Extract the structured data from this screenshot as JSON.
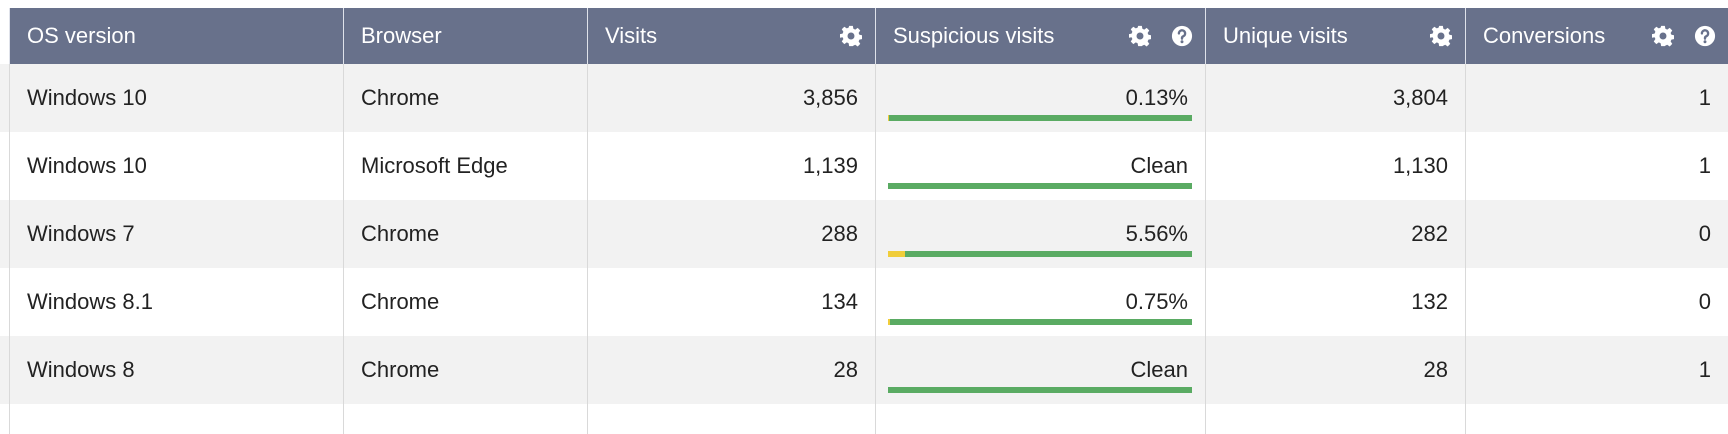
{
  "table": {
    "columns": [
      "OS version",
      "Browser",
      "Visits",
      "Suspicious visits",
      "Unique visits",
      "Conversions"
    ],
    "rows": [
      [
        "Windows 10",
        "Chrome",
        "3,856",
        {
          "label": "0.13%",
          "value": 0.13
        },
        "3,804",
        "1"
      ],
      [
        "Windows 10",
        "Microsoft Edge",
        "1,139",
        {
          "label": "Clean",
          "value": 0
        },
        "1,130",
        "1"
      ],
      [
        "Windows 7",
        "Chrome",
        "288",
        {
          "label": "5.56%",
          "value": 5.56
        },
        "282",
        "0"
      ],
      [
        "Windows 8.1",
        "Chrome",
        "134",
        {
          "label": "0.75%",
          "value": 0.75
        },
        "132",
        "0"
      ],
      [
        "Windows 8",
        "Chrome",
        "28",
        {
          "label": "Clean",
          "value": 0
        },
        "28",
        "1"
      ]
    ]
  }
}
